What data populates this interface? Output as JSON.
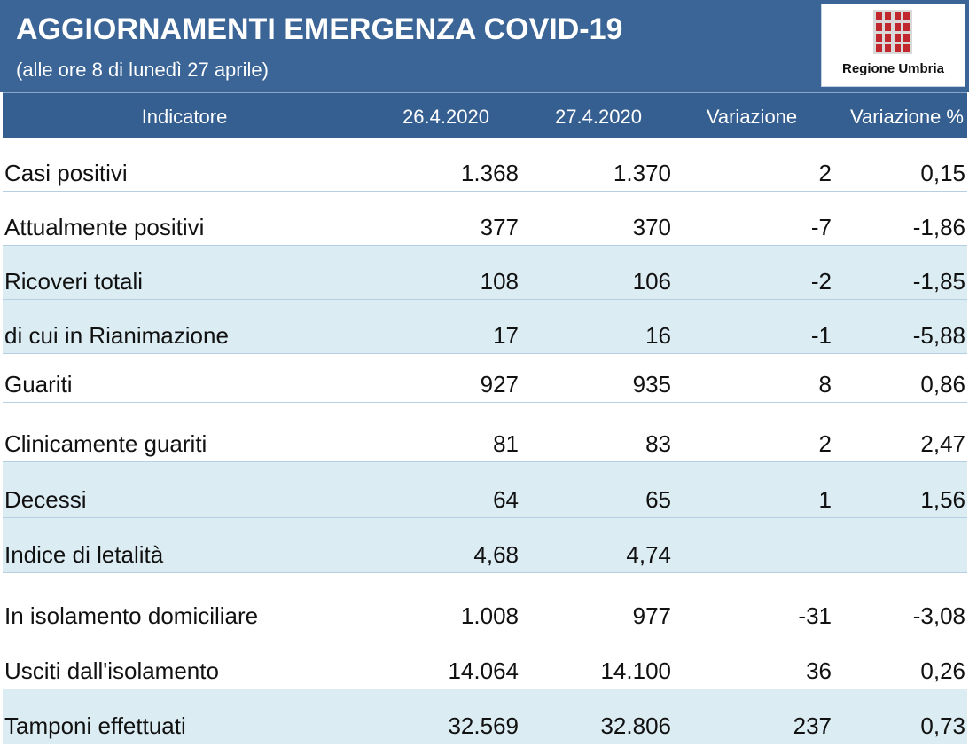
{
  "header": {
    "title": "AGGIORNAMENTI EMERGENZA COVID-19",
    "subtitle": "(alle ore 8 di lunedì 27 aprile)",
    "logo_text": "Regione Umbria",
    "logo_icon": "regione-umbria-emblem-icon",
    "colors": {
      "header_bg": "#3a6596",
      "logo_red": "#c0282e",
      "row_shade": "#dbecf3"
    }
  },
  "table": {
    "columns": [
      "Indicatore",
      "26.4.2020",
      "27.4.2020",
      "Variazione",
      "Variazione %"
    ],
    "rows": [
      {
        "indicator": "Casi positivi",
        "d1": "1.368",
        "d2": "1.370",
        "var": "2",
        "pct": "0,15"
      },
      {
        "indicator": "Attualmente positivi",
        "d1": "377",
        "d2": "370",
        "var": "-7",
        "pct": "-1,86"
      },
      {
        "indicator": "Ricoveri totali",
        "d1": "108",
        "d2": "106",
        "var": "-2",
        "pct": "-1,85"
      },
      {
        "indicator": "di cui in Rianimazione",
        "d1": "17",
        "d2": "16",
        "var": "-1",
        "pct": "-5,88"
      },
      {
        "indicator": "Guariti",
        "d1": "927",
        "d2": "935",
        "var": "8",
        "pct": "0,86"
      },
      {
        "indicator": "Clinicamente guariti",
        "d1": "81",
        "d2": "83",
        "var": "2",
        "pct": "2,47"
      },
      {
        "indicator": "Decessi",
        "d1": "64",
        "d2": "65",
        "var": "1",
        "pct": "1,56"
      },
      {
        "indicator": "Indice di letalità",
        "d1": "4,68",
        "d2": "4,74",
        "var": "",
        "pct": ""
      },
      {
        "indicator": "In isolamento domiciliare",
        "d1": "1.008",
        "d2": "977",
        "var": "-31",
        "pct": "-3,08"
      },
      {
        "indicator": "Usciti dall'isolamento",
        "d1": "14.064",
        "d2": "14.100",
        "var": "36",
        "pct": "0,26"
      },
      {
        "indicator": "Tamponi effettuati",
        "d1": "32.569",
        "d2": "32.806",
        "var": "237",
        "pct": "0,73"
      }
    ]
  }
}
